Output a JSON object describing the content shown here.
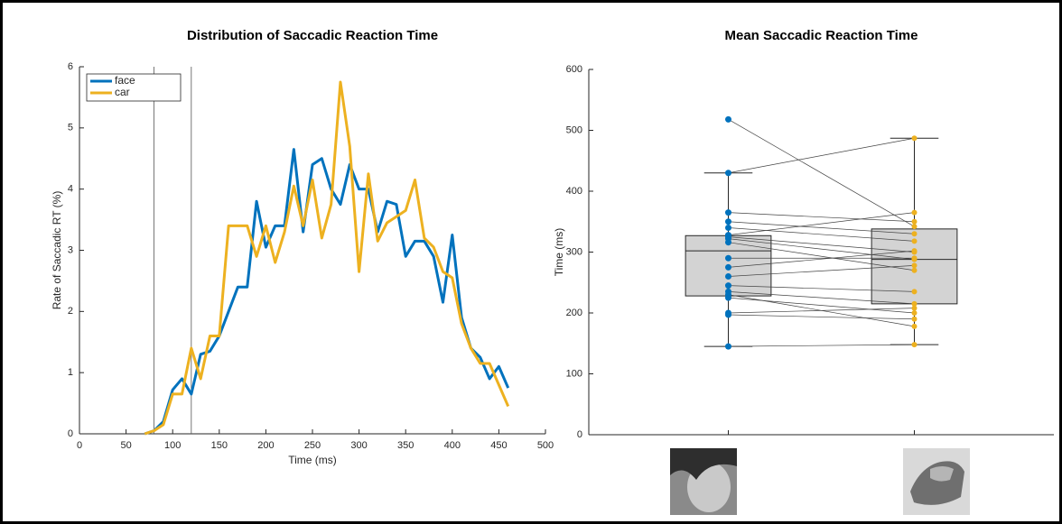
{
  "chart_data": [
    {
      "type": "line",
      "title": "Distribution of Saccadic Reaction Time",
      "xlabel": "Time (ms)",
      "ylabel": "Rate of Saccadic RT (%)",
      "x": [
        70,
        80,
        90,
        100,
        110,
        120,
        130,
        140,
        150,
        160,
        170,
        180,
        190,
        200,
        210,
        220,
        230,
        240,
        250,
        260,
        270,
        280,
        290,
        300,
        310,
        320,
        330,
        340,
        350,
        360,
        370,
        380,
        390,
        400,
        410,
        420,
        430,
        440,
        450,
        460
      ],
      "series": [
        {
          "name": "face",
          "color": "#0072bd",
          "values": [
            0,
            0.05,
            0.2,
            0.72,
            0.9,
            0.65,
            1.3,
            1.35,
            1.6,
            2.0,
            2.4,
            2.4,
            3.8,
            3.05,
            3.4,
            3.4,
            4.65,
            3.3,
            4.4,
            4.5,
            4.0,
            3.75,
            4.4,
            4.0,
            4.0,
            3.3,
            3.8,
            3.75,
            2.9,
            3.15,
            3.15,
            2.9,
            2.15,
            3.25,
            1.9,
            1.4,
            1.25,
            0.9,
            1.1,
            0.75
          ]
        },
        {
          "name": "car",
          "color": "#edb120",
          "values": [
            0,
            0.05,
            0.15,
            0.65,
            0.65,
            1.4,
            0.9,
            1.6,
            1.6,
            3.4,
            3.4,
            3.4,
            2.9,
            3.4,
            2.8,
            3.3,
            4.05,
            3.4,
            4.15,
            3.2,
            3.75,
            5.75,
            4.7,
            2.65,
            4.25,
            3.15,
            3.45,
            3.55,
            3.65,
            4.15,
            3.2,
            3.05,
            2.65,
            2.55,
            1.8,
            1.4,
            1.15,
            1.15,
            0.8,
            0.45
          ]
        }
      ],
      "vlines": [
        80,
        120
      ],
      "xlim": [
        0,
        500
      ],
      "xticks": [
        0,
        50,
        100,
        150,
        200,
        250,
        300,
        350,
        400,
        450,
        500
      ],
      "ylim": [
        0,
        6
      ],
      "yticks": [
        0,
        1,
        2,
        3,
        4,
        5,
        6
      ],
      "legend": "upper-left"
    },
    {
      "type": "box",
      "title": "Mean Saccadic Reaction Time",
      "ylabel": "Time (ms)",
      "categories": [
        null,
        null
      ],
      "groups": [
        {
          "color": "#0072bd",
          "min": 145,
          "q1": 228,
          "median": 302,
          "q3": 327,
          "max": 430,
          "points": [
            518,
            430,
            365,
            350,
            340,
            328,
            325,
            322,
            316,
            290,
            275,
            260,
            245,
            235,
            230,
            225,
            200,
            197,
            145
          ]
        },
        {
          "color": "#edb120",
          "min": 148,
          "q1": 215,
          "median": 288,
          "q3": 338,
          "max": 487,
          "points": [
            342,
            487,
            350,
            330,
            318,
            365,
            300,
            288,
            270,
            290,
            302,
            278,
            235,
            215,
            178,
            200,
            208,
            190,
            148
          ]
        }
      ],
      "box_color": "#d3d3d3",
      "ylim": [
        0,
        600
      ],
      "yticks": [
        0,
        100,
        200,
        300,
        400,
        500,
        600
      ]
    }
  ]
}
